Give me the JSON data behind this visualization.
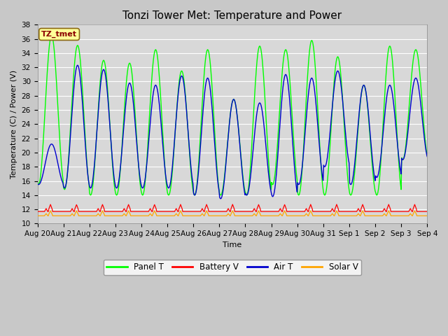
{
  "title": "Tonzi Tower Met: Temperature and Power",
  "xlabel": "Time",
  "ylabel": "Temperature (C) / Power (V)",
  "ylim": [
    10,
    38
  ],
  "yticks": [
    10,
    12,
    14,
    16,
    18,
    20,
    22,
    24,
    26,
    28,
    30,
    32,
    34,
    36,
    38
  ],
  "xtick_labels": [
    "Aug 20",
    "Aug 21",
    "Aug 22",
    "Aug 23",
    "Aug 24",
    "Aug 25",
    "Aug 26",
    "Aug 27",
    "Aug 28",
    "Aug 29",
    "Aug 30",
    "Aug 31",
    "Sep 1",
    "Sep 2",
    "Sep 3",
    "Sep 4"
  ],
  "annotation_text": "TZ_tmet",
  "annotation_color": "#8B0000",
  "annotation_bg": "#FFFF99",
  "annotation_edge": "#8B6914",
  "colors": {
    "Panel T": "#00FF00",
    "Battery V": "#FF0000",
    "Air T": "#0000CD",
    "Solar V": "#FFA500"
  },
  "legend_labels": [
    "Panel T",
    "Battery V",
    "Air T",
    "Solar V"
  ],
  "background_color": "#C8C8C8",
  "plot_bg": "#D8D8D8",
  "grid_color": "#FFFFFF",
  "title_fontsize": 11,
  "axis_fontsize": 8,
  "tick_fontsize": 7.5,
  "n_days": 15,
  "panel_t_peaks": [
    36.5,
    35.1,
    33.0,
    32.6,
    34.5,
    31.5,
    34.5,
    27.5,
    35.0,
    34.5,
    35.8,
    33.5,
    29.5,
    35.0,
    34.5
  ],
  "panel_t_troughs": [
    15.5,
    14.8,
    14.0,
    14.0,
    14.0,
    14.0,
    14.0,
    14.0,
    14.0,
    15.5,
    14.0,
    14.0,
    14.0,
    14.0,
    19.0
  ],
  "air_t_peaks": [
    21.2,
    32.3,
    31.7,
    29.8,
    29.5,
    30.8,
    30.5,
    27.5,
    27.0,
    31.0,
    30.5,
    31.5,
    29.5,
    29.5,
    30.5
  ],
  "air_t_troughs": [
    15.5,
    15.0,
    15.0,
    15.0,
    15.0,
    15.0,
    14.0,
    13.5,
    14.0,
    13.8,
    15.5,
    18.0,
    15.5,
    16.5,
    19.0
  ],
  "battery_v_base": 11.7,
  "battery_v_spike": 13.0,
  "solar_v_base": 11.1,
  "solar_v_spike": 12.2
}
